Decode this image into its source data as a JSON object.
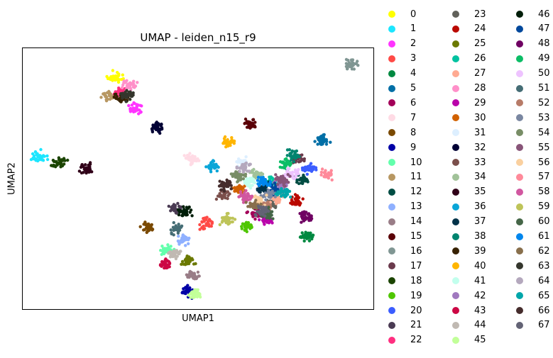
{
  "chart_data": {
    "type": "scatter",
    "title": "UMAP - leiden_n15_r9",
    "xlabel": "UMAP1",
    "ylabel": "UMAP2",
    "grid": false,
    "legend_placement": "outside-right",
    "series": [
      {
        "name": "0",
        "color": "#ffff00",
        "x": [
          -2.8
        ],
        "y": [
          7.2
        ]
      },
      {
        "name": "1",
        "color": "#1ce6ff",
        "x": [
          -6.6
        ],
        "y": [
          2.6
        ]
      },
      {
        "name": "2",
        "color": "#ff34ff",
        "x": [
          -1.7
        ],
        "y": [
          5.4
        ]
      },
      {
        "name": "3",
        "color": "#ff4a46",
        "x": [
          1.9
        ],
        "y": [
          -1.4
        ]
      },
      {
        "name": "4",
        "color": "#008941",
        "x": [
          7.1
        ],
        "y": [
          -2.1
        ]
      },
      {
        "name": "5",
        "color": "#006fa6",
        "x": [
          7.8
        ],
        "y": [
          3.5
        ]
      },
      {
        "name": "6",
        "color": "#a30059",
        "x": [
          4.4
        ],
        "y": [
          -0.8
        ]
      },
      {
        "name": "7",
        "color": "#ffdbe5",
        "x": [
          1.2
        ],
        "y": [
          2.4
        ]
      },
      {
        "name": "8",
        "color": "#7a4900",
        "x": [
          -1.1
        ],
        "y": [
          -1.6
        ]
      },
      {
        "name": "9",
        "color": "#0000a6",
        "x": [
          1.0
        ],
        "y": [
          -5.4
        ]
      },
      {
        "name": "10",
        "color": "#63ffac",
        "x": [
          -0.1
        ],
        "y": [
          -3.0
        ]
      },
      {
        "name": "11",
        "color": "#b79762",
        "x": [
          -3.0
        ],
        "y": [
          6.1
        ]
      },
      {
        "name": "12",
        "color": "#004d43",
        "x": [
          6.8
        ],
        "y": [
          1.2
        ]
      },
      {
        "name": "13",
        "color": "#8fb0ff",
        "x": [
          0.7
        ],
        "y": [
          -2.4
        ]
      },
      {
        "name": "14",
        "color": "#997d87",
        "x": [
          1.2
        ],
        "y": [
          -4.5
        ]
      },
      {
        "name": "15",
        "color": "#5a0007",
        "x": [
          4.2
        ],
        "y": [
          4.5
        ]
      },
      {
        "name": "16",
        "color": "#809693",
        "x": [
          9.3
        ],
        "y": [
          8.0
        ]
      },
      {
        "name": "17",
        "color": "#6a3a4c",
        "x": [
          6.6
        ],
        "y": [
          2.4
        ]
      },
      {
        "name": "18",
        "color": "#1b4400",
        "x": [
          -5.6
        ],
        "y": [
          2.2
        ]
      },
      {
        "name": "19",
        "color": "#4fc601",
        "x": [
          4.0
        ],
        "y": [
          -1.5
        ]
      },
      {
        "name": "20",
        "color": "#3b5dff",
        "x": [
          7.2
        ],
        "y": [
          1.8
        ]
      },
      {
        "name": "21",
        "color": "#4a3b53",
        "x": [
          0.3
        ],
        "y": [
          -0.5
        ]
      },
      {
        "name": "22",
        "color": "#ff2f80",
        "x": [
          -2.5
        ],
        "y": [
          6.3
        ]
      },
      {
        "name": "23",
        "color": "#61615a",
        "x": [
          5.3
        ],
        "y": [
          -0.2
        ]
      },
      {
        "name": "24",
        "color": "#ba0900",
        "x": [
          6.5
        ],
        "y": [
          -0.1
        ]
      },
      {
        "name": "25",
        "color": "#6b7900",
        "x": [
          1.0
        ],
        "y": [
          -3.6
        ]
      },
      {
        "name": "26",
        "color": "#00c2a0",
        "x": [
          5.2
        ],
        "y": [
          1.1
        ]
      },
      {
        "name": "27",
        "color": "#ffaa92",
        "x": [
          5.5
        ],
        "y": [
          0.1
        ]
      },
      {
        "name": "28",
        "color": "#ff90c9",
        "x": [
          -2.0
        ],
        "y": [
          6.8
        ]
      },
      {
        "name": "29",
        "color": "#b903aa",
        "x": [
          5.0
        ],
        "y": [
          -1.2
        ]
      },
      {
        "name": "30",
        "color": "#d16100",
        "x": [
          3.6
        ],
        "y": [
          0.6
        ]
      },
      {
        "name": "31",
        "color": "#ddefff",
        "x": [
          3.8
        ],
        "y": [
          2.2
        ]
      },
      {
        "name": "32",
        "color": "#000035",
        "x": [
          -0.6
        ],
        "y": [
          4.3
        ]
      },
      {
        "name": "33",
        "color": "#7b4f4b",
        "x": [
          2.8
        ],
        "y": [
          0.3
        ]
      },
      {
        "name": "34",
        "color": "#a1c299",
        "x": [
          4.5
        ],
        "y": [
          1.5
        ]
      },
      {
        "name": "35",
        "color": "#300018",
        "x": [
          -4.3
        ],
        "y": [
          1.8
        ]
      },
      {
        "name": "36",
        "color": "#0aa6d8",
        "x": [
          2.3
        ],
        "y": [
          2.0
        ]
      },
      {
        "name": "37",
        "color": "#013349",
        "x": [
          4.8
        ],
        "y": [
          0.7
        ]
      },
      {
        "name": "38",
        "color": "#00846f",
        "x": [
          6.4
        ],
        "y": [
          2.6
        ]
      },
      {
        "name": "39",
        "color": "#372101",
        "x": [
          -2.4
        ],
        "y": [
          6.0
        ]
      },
      {
        "name": "40",
        "color": "#ffb500",
        "x": [
          3.1
        ],
        "y": [
          3.4
        ]
      },
      {
        "name": "41",
        "color": "#c2ffed",
        "x": [
          4.2
        ],
        "y": [
          1.0
        ]
      },
      {
        "name": "42",
        "color": "#a079bf",
        "x": [
          5.7
        ],
        "y": [
          0.9
        ]
      },
      {
        "name": "43",
        "color": "#cc0744",
        "x": [
          -0.2
        ],
        "y": [
          -3.8
        ]
      },
      {
        "name": "44",
        "color": "#c0b9b2",
        "x": [
          0.3
        ],
        "y": [
          -3.2
        ]
      },
      {
        "name": "45",
        "color": "#c2ff99",
        "x": [
          1.4
        ],
        "y": [
          -5.6
        ]
      },
      {
        "name": "46",
        "color": "#001e09",
        "x": [
          0.8
        ],
        "y": [
          -0.7
        ]
      },
      {
        "name": "47",
        "color": "#00489c",
        "x": [
          5.4
        ],
        "y": [
          0.6
        ]
      },
      {
        "name": "48",
        "color": "#6f0062",
        "x": [
          7.0
        ],
        "y": [
          -1.0
        ]
      },
      {
        "name": "49",
        "color": "#0cbd66",
        "x": [
          6.0
        ],
        "y": [
          2.1
        ]
      },
      {
        "name": "50",
        "color": "#eec3ff",
        "x": [
          6.3
        ],
        "y": [
          1.5
        ]
      },
      {
        "name": "51",
        "color": "#456d75",
        "x": [
          0.4
        ],
        "y": [
          -1.7
        ]
      },
      {
        "name": "52",
        "color": "#b77b68",
        "x": [
          4.9
        ],
        "y": [
          -0.4
        ]
      },
      {
        "name": "53",
        "color": "#7a87a1",
        "x": [
          5.1
        ],
        "y": [
          0.3
        ]
      },
      {
        "name": "54",
        "color": "#788d66",
        "x": [
          3.6
        ],
        "y": [
          1.4
        ]
      },
      {
        "name": "55",
        "color": "#885578",
        "x": [
          5.8
        ],
        "y": [
          1.2
        ]
      },
      {
        "name": "56",
        "color": "#fad09f",
        "x": [
          4.6
        ],
        "y": [
          0.0
        ]
      },
      {
        "name": "57",
        "color": "#ff8a9a",
        "x": [
          8.1
        ],
        "y": [
          1.5
        ]
      },
      {
        "name": "58",
        "color": "#d157a0",
        "x": [
          3.9
        ],
        "y": [
          0.2
        ]
      },
      {
        "name": "59",
        "color": "#bec459",
        "x": [
          3.0
        ],
        "y": [
          -1.2
        ]
      },
      {
        "name": "60",
        "color": "#456648",
        "x": [
          5.1
        ],
        "y": [
          -0.8
        ]
      },
      {
        "name": "61",
        "color": "#0086ed",
        "x": [
          4.9
        ],
        "y": [
          1.0
        ]
      },
      {
        "name": "62",
        "color": "#886f4c",
        "x": [
          4.3
        ],
        "y": [
          -0.3
        ]
      },
      {
        "name": "63",
        "color": "#34362d",
        "x": [
          -2.1
        ],
        "y": [
          6.2
        ]
      },
      {
        "name": "64",
        "color": "#b4a8bd",
        "x": [
          3.9
        ],
        "y": [
          1.9
        ]
      },
      {
        "name": "65",
        "color": "#00a6aa",
        "x": [
          5.9
        ],
        "y": [
          0.4
        ]
      },
      {
        "name": "66",
        "color": "#452c2c",
        "x": [
          2.9
        ],
        "y": [
          0.9
        ]
      },
      {
        "name": "67",
        "color": "#636375",
        "x": [
          4.7
        ],
        "y": [
          -0.7
        ]
      }
    ],
    "xlim": [
      -7.5,
      10.5
    ],
    "ylim": [
      -6.5,
      9.0
    ]
  }
}
